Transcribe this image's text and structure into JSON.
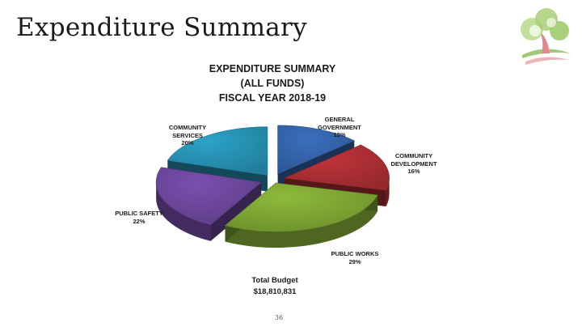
{
  "slide": {
    "title": "Expenditure Summary",
    "page_number": "36",
    "logo_icon": "tree-logo-icon"
  },
  "chart_data": {
    "type": "pie",
    "title": [
      "EXPENDITURE SUMMARY",
      "(ALL FUNDS)",
      "FISCAL YEAR 2018-19"
    ],
    "slices": [
      {
        "name_lines": [
          "GENERAL",
          "GOVERNMENT"
        ],
        "label": "13%",
        "value": 13,
        "color": "#3A6FBE"
      },
      {
        "name_lines": [
          "COMMUNITY",
          "DEVELOPMENT"
        ],
        "label": "16%",
        "value": 16,
        "color": "#C0343A"
      },
      {
        "name_lines": [
          "PUBLIC WORKS"
        ],
        "label": "29%",
        "value": 29,
        "color": "#8DBA3A"
      },
      {
        "name_lines": [
          "PUBLIC SAFETY"
        ],
        "label": "22%",
        "value": 22,
        "color": "#7A4FAE"
      },
      {
        "name_lines": [
          "COMMUNITY",
          "SERVICES"
        ],
        "label": "20%",
        "value": 20,
        "color": "#2BA3C8"
      }
    ],
    "total": {
      "label": "Total Budget",
      "value": "$18,810,831"
    }
  }
}
